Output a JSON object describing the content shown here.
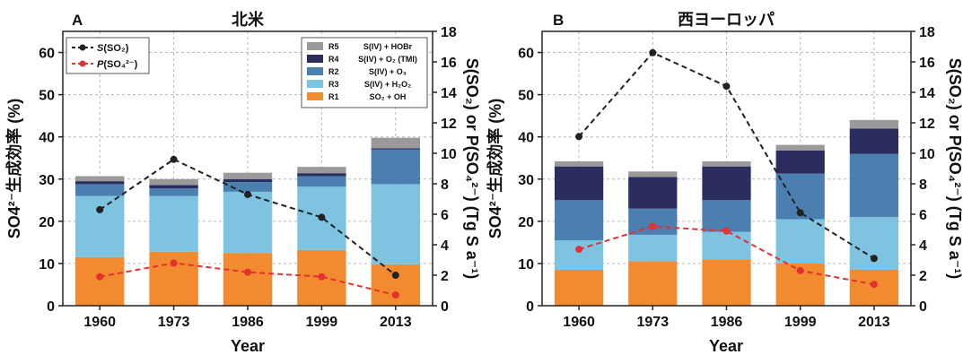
{
  "chart_data": [
    {
      "type": "bar",
      "panel": "A",
      "title": "北米",
      "xlabel": "Year",
      "ylabel": "SO4²⁻生成効率 (%)",
      "y2label": "S(SO₂) or P(SO₄²⁻) (Tg S a⁻¹)",
      "categories": [
        "1960",
        "1973",
        "1986",
        "1999",
        "2013"
      ],
      "ylim": [
        0,
        65
      ],
      "yticks": [
        0,
        10,
        20,
        30,
        40,
        50,
        60
      ],
      "y2lim": [
        0,
        18
      ],
      "y2ticks": [
        0,
        2,
        4,
        6,
        8,
        10,
        12,
        14,
        16,
        18
      ],
      "grid": true,
      "series": [
        {
          "name": "R1",
          "label": "SO₂ + OH",
          "color": "#f28a30",
          "values": [
            11.5,
            12.8,
            12.5,
            13.2,
            9.8
          ]
        },
        {
          "name": "R3",
          "label": "S(IV) + H₂O₂",
          "color": "#7ec3e0",
          "values": [
            14.5,
            13.2,
            14.5,
            15.0,
            19.0
          ]
        },
        {
          "name": "R2",
          "label": "S(IV) + O₃",
          "color": "#4a7fb0",
          "values": [
            2.8,
            1.8,
            2.3,
            2.5,
            8.2
          ]
        },
        {
          "name": "R4",
          "label": "S(IV) + O₂ (TMI)",
          "color": "#2b2d5e",
          "values": [
            0.7,
            0.8,
            0.7,
            0.7,
            0.3
          ]
        },
        {
          "name": "R5",
          "label": "S(IV) + HOBr",
          "color": "#9a9a9a",
          "values": [
            1.2,
            1.4,
            1.5,
            1.5,
            2.5
          ]
        }
      ],
      "lines": [
        {
          "name": "S(SO₂)",
          "color": "#222222",
          "axis": "right",
          "values": [
            6.3,
            9.6,
            7.3,
            5.8,
            2.0
          ]
        },
        {
          "name": "P(SO₄²⁻)",
          "color": "#e53030",
          "axis": "right",
          "values": [
            1.9,
            2.8,
            2.2,
            1.9,
            0.7
          ]
        }
      ],
      "legend_lines_position": "top-left",
      "legend_bars_position": "top-right"
    },
    {
      "type": "bar",
      "panel": "B",
      "title": "西ヨーロッパ",
      "xlabel": "Year",
      "ylabel": "SO4²⁻生成効率 (%)",
      "y2label": "S(SO₂) or P(SO₄²⁻) (Tg S a⁻¹)",
      "categories": [
        "1960",
        "1973",
        "1986",
        "1999",
        "2013"
      ],
      "ylim": [
        0,
        65
      ],
      "yticks": [
        0,
        10,
        20,
        30,
        40,
        50,
        60
      ],
      "y2lim": [
        0,
        18
      ],
      "y2ticks": [
        0,
        2,
        4,
        6,
        8,
        10,
        12,
        14,
        16,
        18
      ],
      "grid": true,
      "series": [
        {
          "name": "R1",
          "label": "SO₂ + OH",
          "color": "#f28a30",
          "values": [
            8.5,
            10.5,
            11.0,
            10.0,
            8.5
          ]
        },
        {
          "name": "R3",
          "label": "S(IV) + H₂O₂",
          "color": "#7ec3e0",
          "values": [
            7.0,
            6.3,
            6.5,
            10.5,
            12.5
          ]
        },
        {
          "name": "R2",
          "label": "S(IV) + O₃",
          "color": "#4a7fb0",
          "values": [
            9.5,
            6.2,
            7.5,
            10.8,
            15.0
          ]
        },
        {
          "name": "R4",
          "label": "S(IV) + O₂ (TMI)",
          "color": "#2b2d5e",
          "values": [
            8.0,
            7.5,
            8.0,
            5.5,
            6.0
          ]
        },
        {
          "name": "R5",
          "label": "S(IV) + HOBr",
          "color": "#9a9a9a",
          "values": [
            1.2,
            1.3,
            1.2,
            1.3,
            2.0
          ]
        }
      ],
      "lines": [
        {
          "name": "S(SO₂)",
          "color": "#222222",
          "axis": "right",
          "values": [
            11.1,
            16.6,
            14.4,
            6.1,
            3.1
          ]
        },
        {
          "name": "P(SO₄²⁻)",
          "color": "#e53030",
          "axis": "right",
          "values": [
            3.7,
            5.2,
            4.9,
            2.3,
            1.4
          ]
        }
      ]
    }
  ],
  "legend": {
    "lines": [
      {
        "prefix": "S",
        "rest": "(SO₂)"
      },
      {
        "prefix": "P",
        "rest": "(SO₄²⁻)"
      }
    ],
    "bars": [
      {
        "code": "R5",
        "label": "S(IV) + HOBr"
      },
      {
        "code": "R4",
        "label": "S(IV) + O₂ (TMI)"
      },
      {
        "code": "R2",
        "label": "S(IV) + O₃"
      },
      {
        "code": "R3",
        "label": "S(IV) + H₂O₂"
      },
      {
        "code": "R1",
        "label": "SO₂ + OH"
      }
    ]
  }
}
